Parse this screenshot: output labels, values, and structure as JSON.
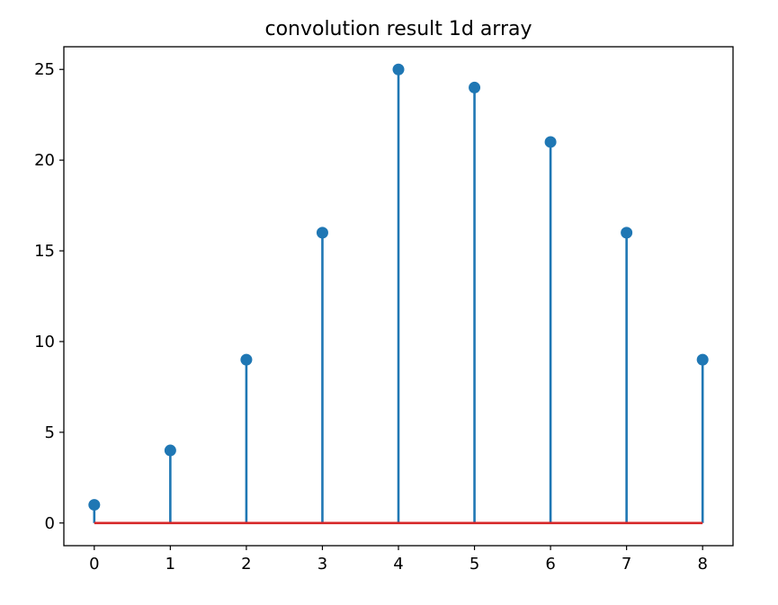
{
  "chart_data": {
    "type": "stem",
    "title": "convolution result 1d array",
    "xlabel": "",
    "ylabel": "",
    "x": [
      0,
      1,
      2,
      3,
      4,
      5,
      6,
      7,
      8
    ],
    "values": [
      1,
      4,
      9,
      16,
      25,
      24,
      21,
      16,
      9
    ],
    "xlim": [
      -0.4,
      8.4
    ],
    "ylim": [
      -1.25,
      26.25
    ],
    "xticks": [
      "0",
      "1",
      "2",
      "3",
      "4",
      "5",
      "6",
      "7",
      "8"
    ],
    "yticks": [
      "0",
      "5",
      "10",
      "15",
      "20",
      "25"
    ],
    "grid": false,
    "legend": "none",
    "colors": {
      "stem": "#1f77b4",
      "marker": "#1f77b4",
      "baseline": "#d62728",
      "axes": "#000000"
    }
  }
}
